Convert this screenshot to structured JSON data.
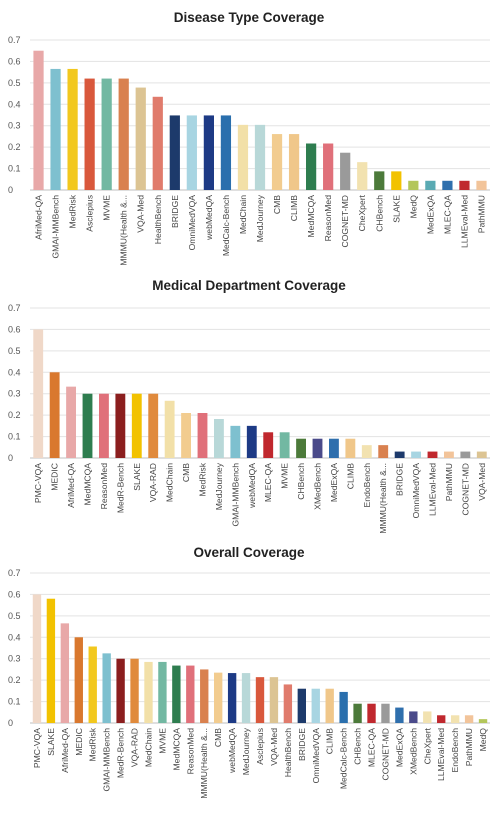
{
  "chart_data": [
    {
      "type": "bar",
      "title": "Disease Type Coverage",
      "xlabel": "",
      "ylabel": "",
      "ylim": [
        0,
        0.7
      ],
      "yticks": [
        "0",
        "0.1",
        "0.2",
        "0.3",
        "0.4",
        "0.5",
        "0.6",
        "0.7"
      ],
      "grid": true,
      "categories": [
        "AfriMed-QA",
        "GMAI-MMBench",
        "MedRisk",
        "Asclepius",
        "MVME",
        "MMMU(Health &...",
        "VQA-Med",
        "HealthBench",
        "BRIDGE",
        "OmniMedVQA",
        "webMedQA",
        "MedCalc-Bench",
        "MedChain",
        "MedJourney",
        "CMB",
        "CLIMB",
        "MedMCQA",
        "ReasonMed",
        "COGNET-MD",
        "CheXpert",
        "CHBench",
        "SLAKE",
        "MedQ",
        "MedExQA",
        "MLEC-QA",
        "LLMEval-Med",
        "PathMMU"
      ],
      "values": [
        0.65,
        0.565,
        0.565,
        0.52,
        0.52,
        0.52,
        0.478,
        0.435,
        0.348,
        0.348,
        0.348,
        0.348,
        0.304,
        0.304,
        0.261,
        0.261,
        0.217,
        0.217,
        0.174,
        0.13,
        0.087,
        0.087,
        0.043,
        0.043,
        0.043,
        0.043,
        0.043
      ],
      "colors": [
        "#e8a8a8",
        "#7ec0cf",
        "#f2c81e",
        "#d9583c",
        "#72b8a2",
        "#d9814f",
        "#dcc493",
        "#e07b6c",
        "#1d3a6b",
        "#a8d5e2",
        "#1d3a85",
        "#2a6fad",
        "#f2e0a8",
        "#b8d8d8",
        "#f2cc8f",
        "#f0c78a",
        "#2e7d4f",
        "#e0707a",
        "#9a9a9a",
        "#f2e2b0",
        "#4c7a3a",
        "#f2c200",
        "#b3c65a",
        "#5aaab3",
        "#2f6fad",
        "#c0282e",
        "#f2c49a"
      ]
    },
    {
      "type": "bar",
      "title": "Medical Department Coverage",
      "xlabel": "",
      "ylabel": "",
      "ylim": [
        0,
        0.7
      ],
      "yticks": [
        "0",
        "0.1",
        "0.2",
        "0.3",
        "0.4",
        "0.5",
        "0.6",
        "0.7"
      ],
      "grid": true,
      "categories": [
        "PMC-VQA",
        "MEDIC",
        "AfriMed-QA",
        "MedMCQA",
        "ReasonMed",
        "MedR-Bench",
        "SLAKE",
        "VQA-RAD",
        "MedChain",
        "CMB",
        "MedRisk",
        "MedJourney",
        "GMAI-MMBench",
        "webMedQA",
        "MLEC-QA",
        "MVME",
        "CHBench",
        "XMedBench",
        "MedExQA",
        "CLIMB",
        "EndoBench",
        "MMMU(Health &...",
        "BRIDGE",
        "OmniMedVQA",
        "LLMEval-Med",
        "PathMMU",
        "COGNET-MD",
        "VQA-Med"
      ],
      "values": [
        0.6,
        0.4,
        0.333,
        0.3,
        0.3,
        0.3,
        0.3,
        0.3,
        0.267,
        0.21,
        0.21,
        0.182,
        0.15,
        0.15,
        0.12,
        0.12,
        0.09,
        0.09,
        0.09,
        0.09,
        0.06,
        0.06,
        0.03,
        0.03,
        0.03,
        0.03,
        0.03,
        0.03
      ],
      "colors": [
        "#f0d8c8",
        "#d9782e",
        "#e8a8a8",
        "#2e7d4f",
        "#e0707a",
        "#8b1e1e",
        "#f2c200",
        "#e08a3c",
        "#f2e0a8",
        "#f2cc8f",
        "#e0707a",
        "#b8d8d8",
        "#7ec0cf",
        "#1d3a85",
        "#c0282e",
        "#72b8a2",
        "#4c7a3a",
        "#4a4a8a",
        "#2f6fad",
        "#f0c78a",
        "#f2e2b0",
        "#d9814f",
        "#1d3a6b",
        "#a8d5e2",
        "#c0282e",
        "#f2c49a",
        "#9a9a9a",
        "#dcc493"
      ]
    },
    {
      "type": "bar",
      "title": "Overall Coverage",
      "xlabel": "",
      "ylabel": "",
      "ylim": [
        0,
        0.7
      ],
      "yticks": [
        "0",
        "0.1",
        "0.2",
        "0.3",
        "0.4",
        "0.5",
        "0.6",
        "0.7"
      ],
      "grid": true,
      "categories": [
        "PMC-VQA",
        "SLAKE",
        "AfriMed-QA",
        "MEDIC",
        "MedRisk",
        "GMAI-MMBench",
        "MedR-Bench",
        "VQA-RAD",
        "MedChain",
        "MVME",
        "MedMCQA",
        "ReasonMed",
        "MMMU(Health &...",
        "CMB",
        "webMedQA",
        "MedJourney",
        "Asclepius",
        "VQA-Med",
        "HealthBench",
        "BRIDGE",
        "OmniMedVQA",
        "CLIMB",
        "MedCalc-Bench",
        "CHBench",
        "MLEC-QA",
        "COGNET-MD",
        "MedExQA",
        "XMedBench",
        "CheXpert",
        "LLMEval-Med",
        "EndoBench",
        "PathMMU",
        "MedQ"
      ],
      "values": [
        0.6,
        0.58,
        0.465,
        0.4,
        0.357,
        0.325,
        0.3,
        0.3,
        0.285,
        0.285,
        0.268,
        0.268,
        0.25,
        0.235,
        0.233,
        0.233,
        0.214,
        0.214,
        0.18,
        0.16,
        0.16,
        0.16,
        0.145,
        0.09,
        0.09,
        0.09,
        0.072,
        0.054,
        0.054,
        0.036,
        0.036,
        0.036,
        0.018
      ],
      "colors": [
        "#f0d8c8",
        "#f2c200",
        "#e8a8a8",
        "#d9782e",
        "#f2c81e",
        "#7ec0cf",
        "#8b1e1e",
        "#e08a3c",
        "#f2e0a8",
        "#72b8a2",
        "#2e7d4f",
        "#e0707a",
        "#d9814f",
        "#f2cc8f",
        "#1d3a85",
        "#b8d8d8",
        "#d9583c",
        "#dcc493",
        "#e07b6c",
        "#1d3a6b",
        "#a8d5e2",
        "#f0c78a",
        "#2a6fad",
        "#4c7a3a",
        "#c0282e",
        "#9a9a9a",
        "#2f6fad",
        "#4a4a8a",
        "#f2e2b0",
        "#c0282e",
        "#f2e2b0",
        "#f2c49a",
        "#b3c65a"
      ]
    }
  ]
}
